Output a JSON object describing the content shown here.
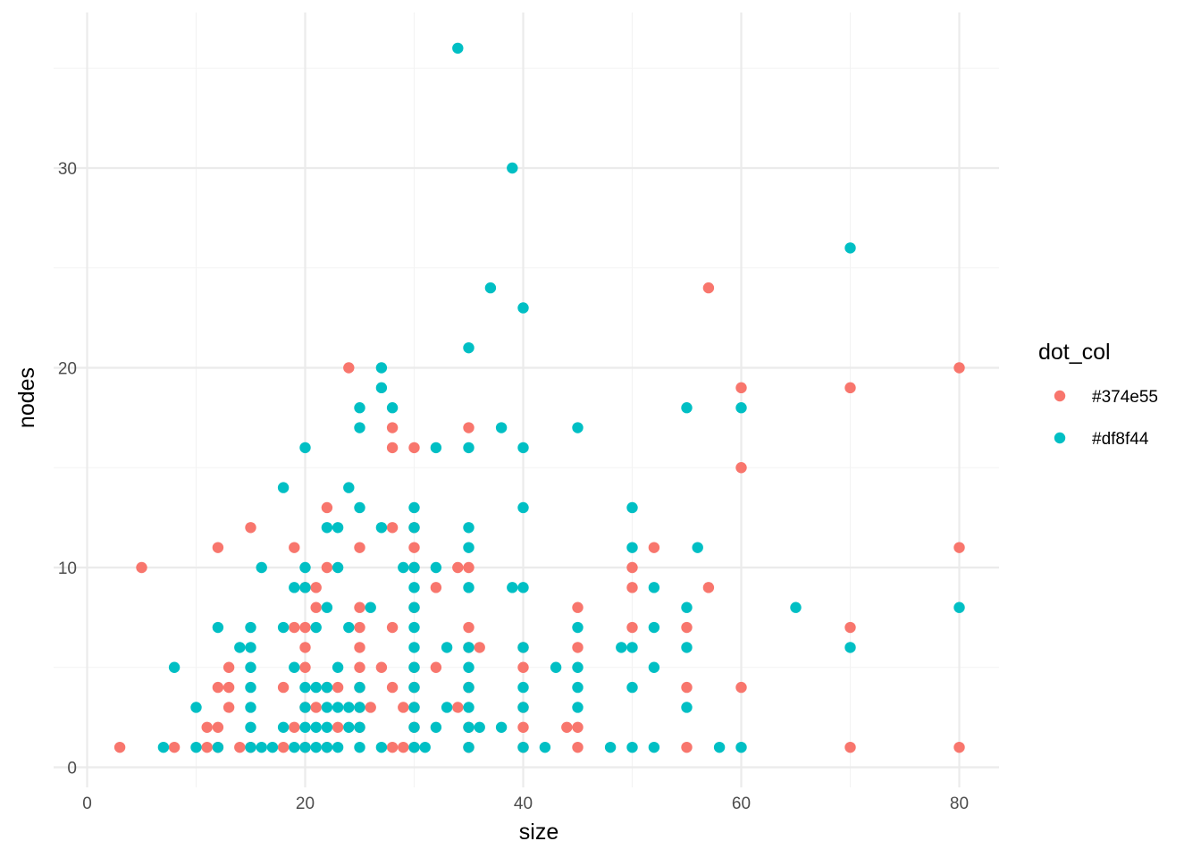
{
  "chart_data": {
    "type": "scatter",
    "xlabel": "size",
    "ylabel": "nodes",
    "xlim": [
      0,
      82
    ],
    "ylim": [
      0,
      36
    ],
    "x_ticks": [
      0,
      20,
      40,
      60,
      80
    ],
    "y_ticks": [
      0,
      10,
      20,
      30
    ],
    "grid": true,
    "legend": {
      "title": "dot_col",
      "placement": "right",
      "entries": [
        {
          "label": "#374e55",
          "color": "#f8766d"
        },
        {
          "label": "#df8f44",
          "color": "#00bfc4"
        }
      ]
    },
    "series": [
      {
        "name": "#374e55",
        "color": "#f8766d",
        "points": [
          [
            3,
            1
          ],
          [
            5,
            10
          ],
          [
            8,
            1
          ],
          [
            11,
            2
          ],
          [
            11,
            1
          ],
          [
            12,
            11
          ],
          [
            12,
            4
          ],
          [
            12,
            2
          ],
          [
            12,
            1
          ],
          [
            13,
            5
          ],
          [
            13,
            4
          ],
          [
            13,
            3
          ],
          [
            14,
            1
          ],
          [
            15,
            12
          ],
          [
            15,
            1
          ],
          [
            18,
            4
          ],
          [
            18,
            1
          ],
          [
            19,
            11
          ],
          [
            19,
            7
          ],
          [
            19,
            2
          ],
          [
            20,
            9
          ],
          [
            20,
            7
          ],
          [
            20,
            6
          ],
          [
            20,
            5
          ],
          [
            20,
            3
          ],
          [
            20,
            1
          ],
          [
            21,
            9
          ],
          [
            21,
            8
          ],
          [
            21,
            3
          ],
          [
            22,
            13
          ],
          [
            22,
            10
          ],
          [
            22,
            4
          ],
          [
            22,
            1
          ],
          [
            23,
            4
          ],
          [
            23,
            2
          ],
          [
            24,
            20
          ],
          [
            25,
            11
          ],
          [
            25,
            8
          ],
          [
            25,
            7
          ],
          [
            25,
            6
          ],
          [
            25,
            5
          ],
          [
            25,
            4
          ],
          [
            25,
            3
          ],
          [
            25,
            2
          ],
          [
            26,
            3
          ],
          [
            27,
            5
          ],
          [
            28,
            17
          ],
          [
            28,
            16
          ],
          [
            28,
            12
          ],
          [
            28,
            7
          ],
          [
            28,
            4
          ],
          [
            28,
            1
          ],
          [
            29,
            3
          ],
          [
            29,
            1
          ],
          [
            30,
            16
          ],
          [
            30,
            12
          ],
          [
            30,
            11
          ],
          [
            30,
            10
          ],
          [
            30,
            8
          ],
          [
            30,
            5
          ],
          [
            30,
            4
          ],
          [
            30,
            3
          ],
          [
            30,
            2
          ],
          [
            30,
            1
          ],
          [
            32,
            9
          ],
          [
            32,
            5
          ],
          [
            34,
            10
          ],
          [
            34,
            3
          ],
          [
            35,
            17
          ],
          [
            35,
            10
          ],
          [
            35,
            7
          ],
          [
            35,
            6
          ],
          [
            35,
            4
          ],
          [
            35,
            2
          ],
          [
            35,
            1
          ],
          [
            36,
            6
          ],
          [
            40,
            6
          ],
          [
            40,
            5
          ],
          [
            40,
            3
          ],
          [
            40,
            2
          ],
          [
            40,
            1
          ],
          [
            44,
            2
          ],
          [
            45,
            8
          ],
          [
            45,
            6
          ],
          [
            45,
            2
          ],
          [
            45,
            1
          ],
          [
            50,
            10
          ],
          [
            50,
            9
          ],
          [
            50,
            7
          ],
          [
            52,
            11
          ],
          [
            55,
            7
          ],
          [
            55,
            4
          ],
          [
            55,
            1
          ],
          [
            57,
            24
          ],
          [
            57,
            9
          ],
          [
            60,
            19
          ],
          [
            60,
            15
          ],
          [
            60,
            4
          ],
          [
            70,
            19
          ],
          [
            70,
            7
          ],
          [
            70,
            1
          ],
          [
            80,
            20
          ],
          [
            80,
            11
          ],
          [
            80,
            1
          ]
        ]
      },
      {
        "name": "#df8f44",
        "color": "#00bfc4",
        "points": [
          [
            7,
            1
          ],
          [
            8,
            5
          ],
          [
            10,
            3
          ],
          [
            10,
            1
          ],
          [
            12,
            7
          ],
          [
            12,
            1
          ],
          [
            14,
            6
          ],
          [
            15,
            7
          ],
          [
            15,
            6
          ],
          [
            15,
            5
          ],
          [
            15,
            4
          ],
          [
            15,
            3
          ],
          [
            15,
            2
          ],
          [
            15,
            1
          ],
          [
            16,
            10
          ],
          [
            16,
            1
          ],
          [
            17,
            1
          ],
          [
            18,
            14
          ],
          [
            18,
            7
          ],
          [
            18,
            2
          ],
          [
            19,
            9
          ],
          [
            19,
            5
          ],
          [
            19,
            1
          ],
          [
            20,
            16
          ],
          [
            20,
            10
          ],
          [
            20,
            9
          ],
          [
            20,
            4
          ],
          [
            20,
            3
          ],
          [
            20,
            2
          ],
          [
            20,
            1
          ],
          [
            21,
            7
          ],
          [
            21,
            4
          ],
          [
            21,
            2
          ],
          [
            21,
            1
          ],
          [
            22,
            12
          ],
          [
            22,
            8
          ],
          [
            22,
            4
          ],
          [
            22,
            3
          ],
          [
            22,
            2
          ],
          [
            22,
            1
          ],
          [
            23,
            12
          ],
          [
            23,
            10
          ],
          [
            23,
            5
          ],
          [
            23,
            3
          ],
          [
            23,
            1
          ],
          [
            24,
            14
          ],
          [
            24,
            7
          ],
          [
            24,
            3
          ],
          [
            24,
            2
          ],
          [
            25,
            18
          ],
          [
            25,
            17
          ],
          [
            25,
            13
          ],
          [
            25,
            4
          ],
          [
            25,
            3
          ],
          [
            25,
            2
          ],
          [
            25,
            1
          ],
          [
            26,
            8
          ],
          [
            27,
            20
          ],
          [
            27,
            19
          ],
          [
            27,
            12
          ],
          [
            27,
            1
          ],
          [
            28,
            18
          ],
          [
            29,
            10
          ],
          [
            30,
            13
          ],
          [
            30,
            12
          ],
          [
            30,
            10
          ],
          [
            30,
            9
          ],
          [
            30,
            8
          ],
          [
            30,
            7
          ],
          [
            30,
            6
          ],
          [
            30,
            5
          ],
          [
            30,
            4
          ],
          [
            30,
            3
          ],
          [
            30,
            2
          ],
          [
            30,
            1
          ],
          [
            31,
            1
          ],
          [
            32,
            16
          ],
          [
            32,
            10
          ],
          [
            32,
            2
          ],
          [
            33,
            6
          ],
          [
            33,
            3
          ],
          [
            34,
            36
          ],
          [
            35,
            21
          ],
          [
            35,
            16
          ],
          [
            35,
            12
          ],
          [
            35,
            11
          ],
          [
            35,
            9
          ],
          [
            35,
            6
          ],
          [
            35,
            5
          ],
          [
            35,
            4
          ],
          [
            35,
            3
          ],
          [
            35,
            2
          ],
          [
            35,
            1
          ],
          [
            36,
            2
          ],
          [
            37,
            24
          ],
          [
            38,
            17
          ],
          [
            38,
            2
          ],
          [
            39,
            30
          ],
          [
            39,
            9
          ],
          [
            40,
            23
          ],
          [
            40,
            16
          ],
          [
            40,
            13
          ],
          [
            40,
            9
          ],
          [
            40,
            6
          ],
          [
            40,
            4
          ],
          [
            40,
            3
          ],
          [
            40,
            1
          ],
          [
            42,
            1
          ],
          [
            43,
            5
          ],
          [
            45,
            17
          ],
          [
            45,
            7
          ],
          [
            45,
            5
          ],
          [
            45,
            4
          ],
          [
            45,
            3
          ],
          [
            48,
            1
          ],
          [
            49,
            6
          ],
          [
            50,
            13
          ],
          [
            50,
            11
          ],
          [
            50,
            6
          ],
          [
            50,
            4
          ],
          [
            50,
            1
          ],
          [
            52,
            9
          ],
          [
            52,
            7
          ],
          [
            52,
            5
          ],
          [
            52,
            1
          ],
          [
            55,
            18
          ],
          [
            55,
            8
          ],
          [
            55,
            6
          ],
          [
            55,
            3
          ],
          [
            56,
            11
          ],
          [
            58,
            1
          ],
          [
            60,
            18
          ],
          [
            60,
            1
          ],
          [
            65,
            8
          ],
          [
            70,
            26
          ],
          [
            70,
            6
          ],
          [
            80,
            8
          ]
        ]
      }
    ]
  }
}
